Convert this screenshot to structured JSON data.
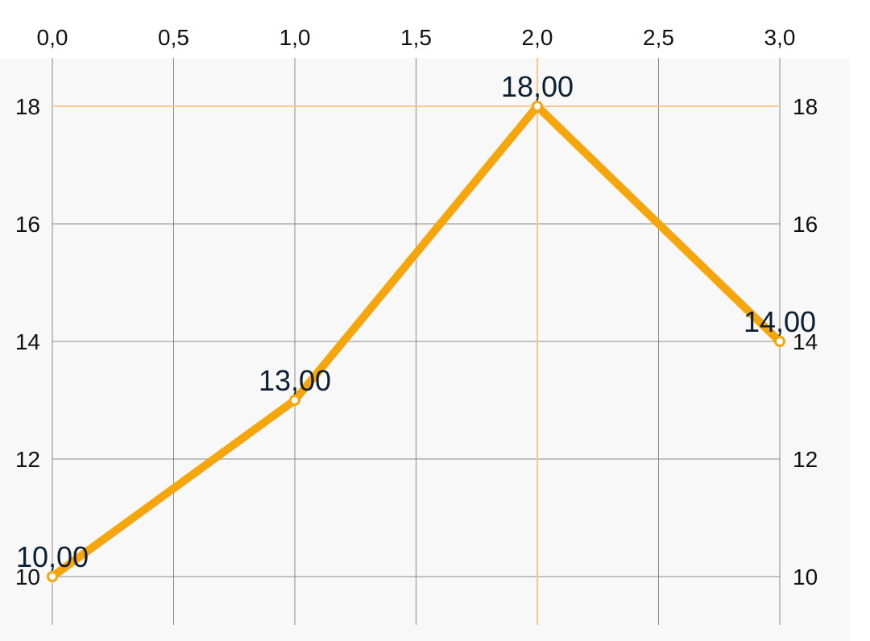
{
  "colors": {
    "series": "#f5a60d",
    "highlight": "#fbc88c",
    "grid": "#8a8a8a",
    "plot_background": "#f8f8f8",
    "tick_text": "#111111",
    "data_label_text": "#0d2033"
  },
  "chart_data": {
    "type": "line",
    "title": "",
    "xlabel": "",
    "ylabel": "",
    "x_axis_position": "top",
    "y_axis_position": "both",
    "xlim": [
      0,
      3
    ],
    "ylim": [
      9.2,
      18.8
    ],
    "x_ticks": [
      0,
      0.5,
      1,
      1.5,
      2,
      2.5,
      3
    ],
    "x_tick_labels": [
      "0,0",
      "0,5",
      "1,0",
      "1,5",
      "2,0",
      "2,5",
      "3,0"
    ],
    "y_ticks": [
      10,
      12,
      14,
      16,
      18
    ],
    "y_tick_labels": [
      "10",
      "12",
      "14",
      "16",
      "18"
    ],
    "grid": true,
    "highlight": {
      "x": 2,
      "y": 18
    },
    "series": [
      {
        "x": [
          0,
          1,
          2,
          3
        ],
        "values": [
          10,
          13,
          18,
          14
        ],
        "data_labels": [
          "10,00",
          "13,00",
          "18,00",
          "14,00"
        ]
      }
    ]
  }
}
